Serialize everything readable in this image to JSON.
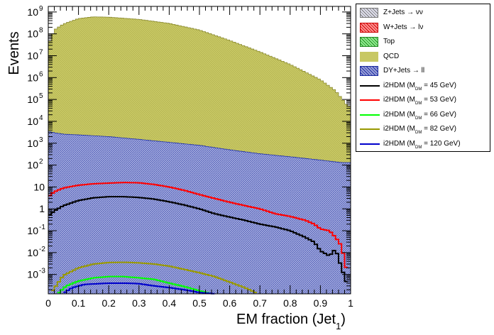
{
  "chart_data": {
    "type": "area",
    "xlabel": "EM fraction (Jet",
    "xlabel_subscript": "1",
    "xlabel_close": ")",
    "ylabel": "Events",
    "xlim": [
      0,
      1
    ],
    "ylim": [
      0.00013,
      1800000000.0
    ],
    "log_y": true,
    "bins": 100,
    "x_ticks": [
      "0",
      "0.1",
      "0.2",
      "0.3",
      "0.4",
      "0.5",
      "0.6",
      "0.7",
      "0.8",
      "0.9",
      "1"
    ],
    "y_ticks": [
      {
        "v": 0.001,
        "label": "10",
        "exp": "-3"
      },
      {
        "v": 0.01,
        "label": "10",
        "exp": "-2"
      },
      {
        "v": 0.1,
        "label": "10",
        "exp": "-1"
      },
      {
        "v": 1,
        "label": "1",
        "exp": ""
      },
      {
        "v": 10,
        "label": "10",
        "exp": ""
      },
      {
        "v": 100,
        "label": "10",
        "exp": "2"
      },
      {
        "v": 1000,
        "label": "10",
        "exp": "3"
      },
      {
        "v": 10000,
        "label": "10",
        "exp": "4"
      },
      {
        "v": 100000,
        "label": "10",
        "exp": "5"
      },
      {
        "v": 1000000,
        "label": "10",
        "exp": "6"
      },
      {
        "v": 10000000,
        "label": "10",
        "exp": "7"
      },
      {
        "v": 100000000,
        "label": "10",
        "exp": "8"
      },
      {
        "v": 1000000000,
        "label": "10",
        "exp": "9"
      }
    ],
    "stack_total": {
      "name": "QCD",
      "color": "#c8c864",
      "points": [
        [
          0,
          30000000.0
        ],
        [
          0.02,
          150000000.0
        ],
        [
          0.05,
          280000000.0
        ],
        [
          0.1,
          500000000.0
        ],
        [
          0.15,
          600000000.0
        ],
        [
          0.2,
          580000000.0
        ],
        [
          0.3,
          460000000.0
        ],
        [
          0.4,
          300000000.0
        ],
        [
          0.5,
          150000000.0
        ],
        [
          0.6,
          50000000.0
        ],
        [
          0.7,
          15000000.0
        ],
        [
          0.8,
          4000000.0
        ],
        [
          0.9,
          800000.0
        ],
        [
          0.95,
          250000.0
        ],
        [
          0.99,
          50000.0
        ],
        [
          1.0,
          50000.0
        ]
      ]
    },
    "stack_lower": {
      "name": "DY+Jets → ll",
      "color": "#9aa0d8",
      "points": [
        [
          0,
          3500
        ],
        [
          0.02,
          3000
        ],
        [
          0.05,
          2600
        ],
        [
          0.1,
          2400
        ],
        [
          0.2,
          2000
        ],
        [
          0.3,
          1500
        ],
        [
          0.4,
          1100
        ],
        [
          0.5,
          800
        ],
        [
          0.6,
          500
        ],
        [
          0.7,
          330
        ],
        [
          0.8,
          240
        ],
        [
          0.9,
          170
        ],
        [
          0.97,
          130
        ],
        [
          1.0,
          130
        ]
      ]
    },
    "signals": [
      {
        "name": "i2HDM (M",
        "sub": "DM",
        "mass": " =  45 GeV)",
        "color": "#000000",
        "points": [
          [
            0,
            0.45
          ],
          [
            0.02,
            0.8
          ],
          [
            0.05,
            1.4
          ],
          [
            0.1,
            2.4
          ],
          [
            0.15,
            3.2
          ],
          [
            0.2,
            3.6
          ],
          [
            0.25,
            3.6
          ],
          [
            0.3,
            3.3
          ],
          [
            0.35,
            2.8
          ],
          [
            0.4,
            2.1
          ],
          [
            0.45,
            1.5
          ],
          [
            0.5,
            1.0
          ],
          [
            0.55,
            0.6
          ],
          [
            0.6,
            0.42
          ],
          [
            0.65,
            0.3
          ],
          [
            0.7,
            0.2
          ],
          [
            0.75,
            0.15
          ],
          [
            0.8,
            0.1
          ],
          [
            0.85,
            0.05
          ],
          [
            0.88,
            0.03
          ],
          [
            0.9,
            0.012
          ],
          [
            0.93,
            0.007
          ],
          [
            0.95,
            0.015
          ],
          [
            0.97,
            0.002
          ],
          [
            0.99,
            0.0003
          ]
        ]
      },
      {
        "name": "i2HDM (M",
        "sub": "DM",
        "mass": " =  53 GeV)",
        "color": "#ff0000",
        "points": [
          [
            0,
            3.5
          ],
          [
            0.02,
            6
          ],
          [
            0.05,
            9
          ],
          [
            0.1,
            12
          ],
          [
            0.15,
            14
          ],
          [
            0.2,
            15
          ],
          [
            0.25,
            16
          ],
          [
            0.3,
            15.5
          ],
          [
            0.35,
            13
          ],
          [
            0.4,
            10
          ],
          [
            0.45,
            7
          ],
          [
            0.5,
            4.5
          ],
          [
            0.55,
            3
          ],
          [
            0.6,
            2
          ],
          [
            0.65,
            1.4
          ],
          [
            0.7,
            1.0
          ],
          [
            0.75,
            0.6
          ],
          [
            0.8,
            0.45
          ],
          [
            0.85,
            0.3
          ],
          [
            0.88,
            0.2
          ],
          [
            0.9,
            0.12
          ],
          [
            0.93,
            0.1
          ],
          [
            0.95,
            0.05
          ],
          [
            0.97,
            0.02
          ],
          [
            0.99,
            0.001
          ]
        ]
      },
      {
        "name": "i2HDM (M",
        "sub": "DM",
        "mass": " =  66 GeV)",
        "color": "#00ff00",
        "points": [
          [
            0.03,
            0.00013
          ],
          [
            0.06,
            0.0003
          ],
          [
            0.1,
            0.0005
          ],
          [
            0.15,
            0.0007
          ],
          [
            0.2,
            0.0008
          ],
          [
            0.25,
            0.0008
          ],
          [
            0.3,
            0.0007
          ],
          [
            0.35,
            0.0006
          ],
          [
            0.4,
            0.0004
          ],
          [
            0.45,
            0.00028
          ],
          [
            0.5,
            0.00018
          ],
          [
            0.54,
            0.00013
          ]
        ]
      },
      {
        "name": "i2HDM (M",
        "sub": "DM",
        "mass": " =  82 GeV)",
        "color": "#999900",
        "points": [
          [
            0.01,
            0.00015
          ],
          [
            0.05,
            0.0009
          ],
          [
            0.1,
            0.002
          ],
          [
            0.15,
            0.003
          ],
          [
            0.2,
            0.0035
          ],
          [
            0.25,
            0.0036
          ],
          [
            0.3,
            0.0034
          ],
          [
            0.35,
            0.003
          ],
          [
            0.4,
            0.0024
          ],
          [
            0.45,
            0.0017
          ],
          [
            0.5,
            0.0012
          ],
          [
            0.55,
            0.0008
          ],
          [
            0.6,
            0.00045
          ],
          [
            0.65,
            0.00025
          ],
          [
            0.69,
            0.00014
          ]
        ]
      },
      {
        "name": "i2HDM (M",
        "sub": "DM",
        "mass": " = 120 GeV)",
        "color": "#0000cc",
        "points": [
          [
            0.05,
            0.00014
          ],
          [
            0.08,
            0.00025
          ],
          [
            0.12,
            0.00035
          ],
          [
            0.2,
            0.0004
          ],
          [
            0.25,
            0.0004
          ],
          [
            0.3,
            0.00038
          ],
          [
            0.35,
            0.0003
          ],
          [
            0.4,
            0.00025
          ],
          [
            0.45,
            0.0002
          ],
          [
            0.5,
            0.00015
          ],
          [
            0.55,
            0.00013
          ]
        ]
      }
    ],
    "legend": {
      "placement": "outside-right",
      "backgrounds": [
        {
          "label": "Z+Jets → νν",
          "color": "#e0e0ee",
          "hatch": "#777777"
        },
        {
          "label": "W+Jets → lν",
          "color": "#ff9090",
          "hatch": "#cc0000"
        },
        {
          "label": "Top",
          "color": "#90ee90",
          "hatch": "#228822"
        },
        {
          "label": "QCD",
          "color": "#c8c864",
          "hatch": "#c8c864"
        },
        {
          "label": "DY+Jets → ll",
          "color": "#9aa0d8",
          "hatch": "#1a2aa0"
        }
      ]
    }
  }
}
